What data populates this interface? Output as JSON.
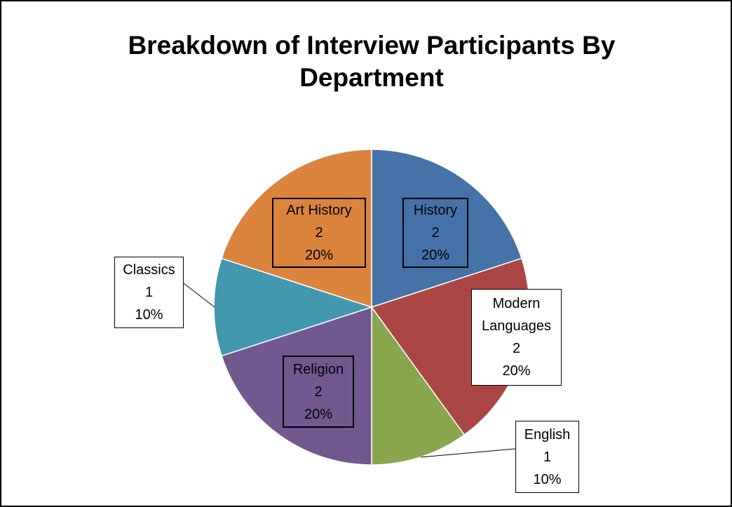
{
  "chart_data": {
    "type": "pie",
    "title": "Breakdown of Interview Participants By Department",
    "categories": [
      "History",
      "Modern Languages",
      "English",
      "Religion",
      "Classics",
      "Art History"
    ],
    "values": [
      2,
      2,
      1,
      2,
      1,
      2
    ],
    "percent_labels": [
      "20%",
      "20%",
      "10%",
      "20%",
      "10%",
      "20%"
    ],
    "colors": [
      "#4572a7",
      "#aa4643",
      "#89a54e",
      "#71588f",
      "#4198af",
      "#db843d"
    ]
  }
}
